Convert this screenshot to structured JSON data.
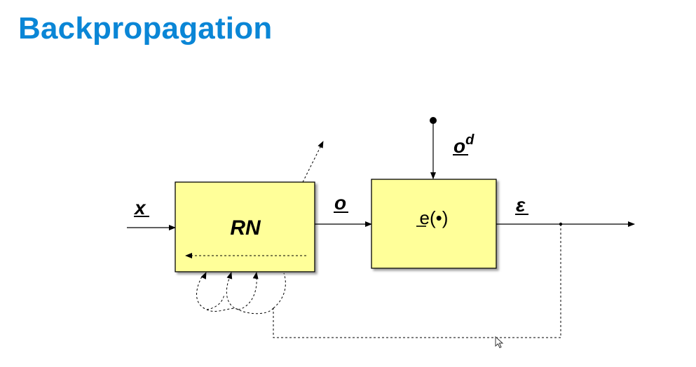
{
  "slide": {
    "title": "Backpropagation"
  },
  "diagram": {
    "input_label": "x",
    "network_block_label": "RN",
    "output_label": "o",
    "error_block_label": "e(•)",
    "desired_output_label": "o",
    "desired_output_superscript": "d",
    "error_signal_label": "ε",
    "block_fill": "#ffff99",
    "block_stroke": "#000000"
  }
}
